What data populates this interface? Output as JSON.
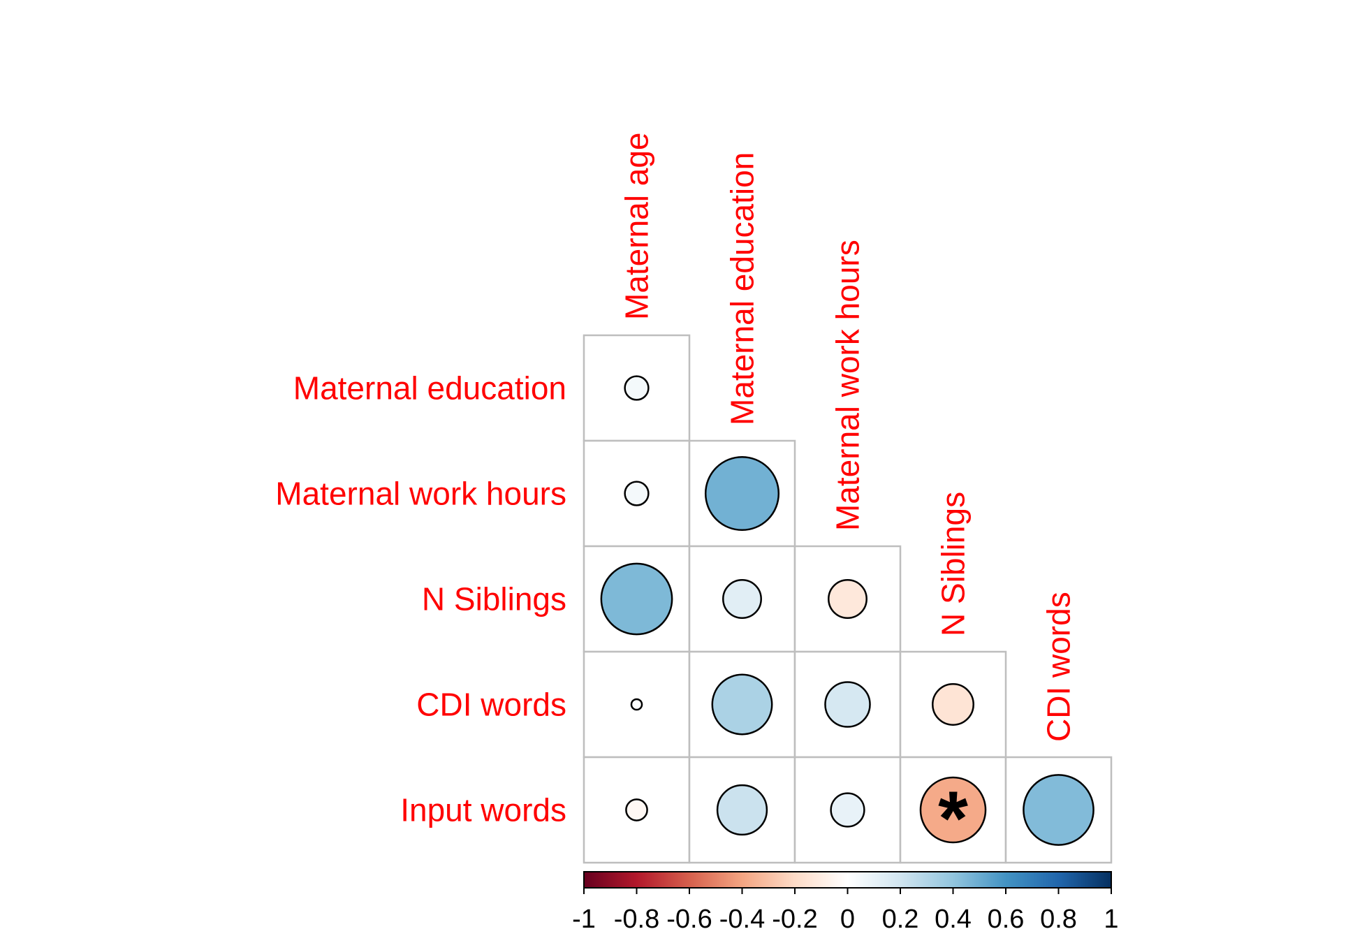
{
  "chart_data": {
    "type": "heatmap",
    "subtype": "correlation-matrix-lower-triangle",
    "columns": [
      "Maternal age",
      "Maternal education",
      "Maternal work hours",
      "N Siblings",
      "CDI words"
    ],
    "rows": [
      "Maternal education",
      "Maternal work hours",
      "N Siblings",
      "CDI words",
      "Input words"
    ],
    "values": [
      [
        0.05,
        null,
        null,
        null,
        null
      ],
      [
        0.05,
        0.48,
        null,
        null,
        null
      ],
      [
        0.45,
        0.13,
        -0.13,
        null,
        null
      ],
      [
        0.01,
        0.32,
        0.18,
        -0.15,
        null
      ],
      [
        -0.04,
        0.22,
        0.1,
        -0.38,
        0.44
      ]
    ],
    "significance": [
      [
        false,
        null,
        null,
        null,
        null
      ],
      [
        false,
        false,
        null,
        null,
        null
      ],
      [
        false,
        false,
        false,
        null,
        null
      ],
      [
        false,
        false,
        false,
        false,
        null
      ],
      [
        false,
        false,
        false,
        true,
        false
      ]
    ],
    "significance_mark": "*",
    "colorbar": {
      "range": [
        -1,
        1
      ],
      "ticks": [
        "-1",
        "-0.8",
        "-0.6",
        "-0.4",
        "-0.2",
        "0",
        "0.2",
        "0.4",
        "0.6",
        "0.8",
        "1"
      ],
      "colors": [
        "#67001f",
        "#b2182b",
        "#d6604d",
        "#f4a582",
        "#fddbc7",
        "#ffffff",
        "#d1e5f0",
        "#92c5de",
        "#4393c3",
        "#2166ac",
        "#053061"
      ]
    },
    "label_color": "#ff0000",
    "grid_color": "#bebebe"
  }
}
